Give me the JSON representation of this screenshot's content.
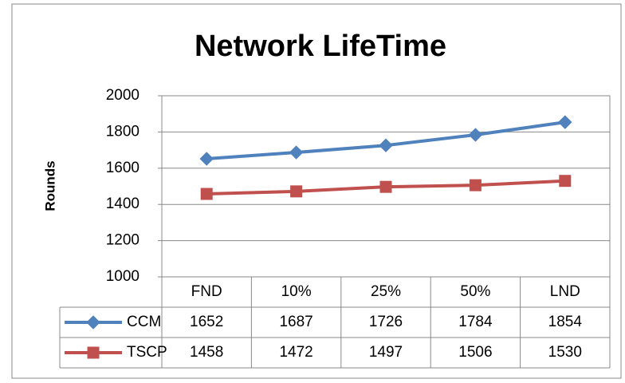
{
  "chart_data": {
    "type": "line",
    "title": "Network LifeTime",
    "y_label": "Rounds",
    "categories": [
      "FND",
      "10%",
      "25%",
      "50%",
      "LND"
    ],
    "series": [
      {
        "name": "CCM",
        "color": "#4f81bd",
        "marker": "diamond",
        "values": [
          1652,
          1687,
          1726,
          1784,
          1854
        ]
      },
      {
        "name": "TSCP",
        "color": "#c0504d",
        "marker": "square",
        "values": [
          1458,
          1472,
          1497,
          1506,
          1530
        ]
      }
    ],
    "ylim": [
      1000,
      2000
    ],
    "yticks": [
      1000,
      1200,
      1400,
      1600,
      1800,
      2000
    ],
    "grid": true,
    "data_table": true
  }
}
